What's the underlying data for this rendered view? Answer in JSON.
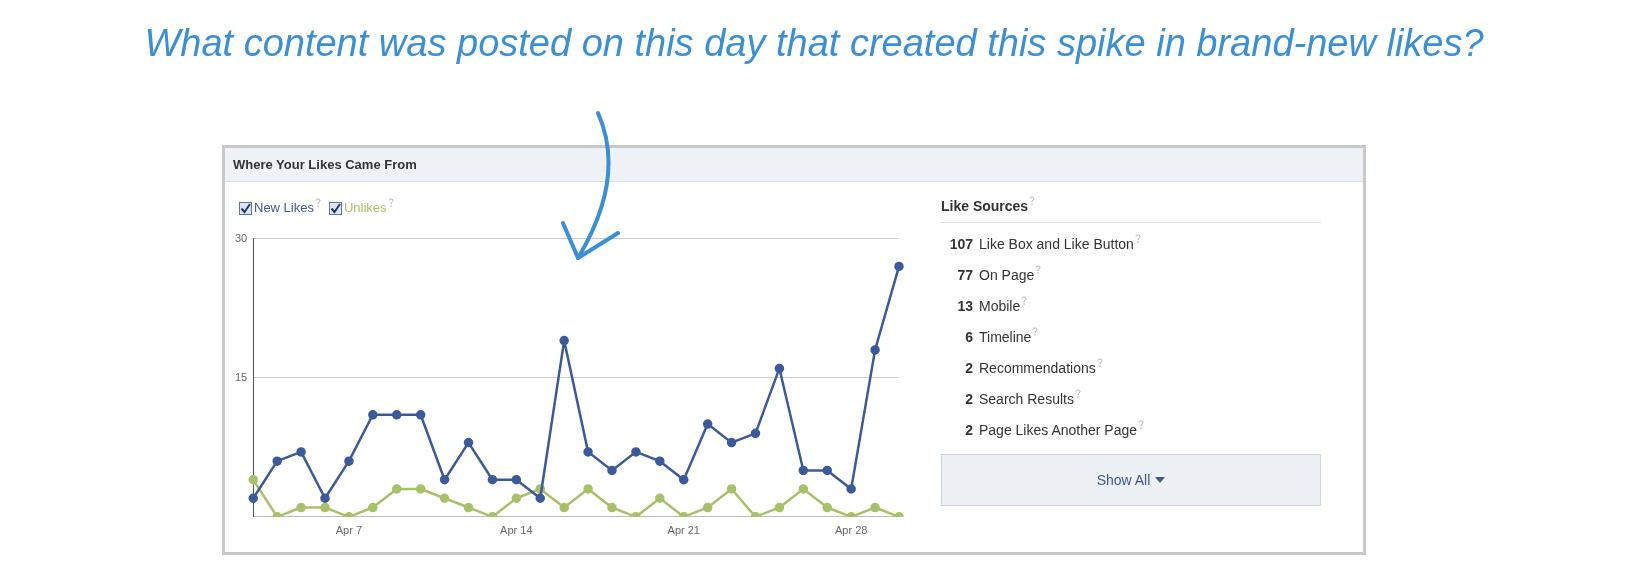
{
  "chart_data": [
    {
      "type": "line",
      "title": "Where Your Likes Came From",
      "annotations": [
        "What content was posted on this day that created this spike in brand-new likes?"
      ],
      "categories": [
        null,
        null,
        null,
        null,
        "Apr 7",
        null,
        null,
        null,
        null,
        null,
        null,
        "Apr 14",
        null,
        null,
        null,
        null,
        null,
        null,
        "Apr 21",
        null,
        null,
        null,
        null,
        null,
        null,
        "Apr 28",
        null,
        null
      ],
      "series": [
        {
          "name": "New Likes",
          "color": "#3d5a98",
          "values": [
            2,
            6,
            7,
            2,
            6,
            11,
            11,
            11,
            4,
            8,
            4,
            4,
            2,
            19,
            7,
            5,
            7,
            6,
            4,
            10,
            8,
            9,
            16,
            5,
            5,
            3,
            18,
            27
          ]
        },
        {
          "name": "Unlikes",
          "color": "#a9c06a",
          "values": [
            4,
            0,
            1,
            1,
            0,
            1,
            3,
            3,
            2,
            1,
            0,
            2,
            3,
            1,
            3,
            1,
            0,
            2,
            0,
            1,
            3,
            0,
            1,
            3,
            1,
            0,
            1,
            0
          ]
        }
      ],
      "ylim": [
        0,
        30
      ],
      "yticks": [
        {
          "value": 0,
          "label": null
        },
        15,
        30
      ],
      "grid": "y",
      "legend": "top left",
      "marker": "circle",
      "line_style": "solid"
    },
    {
      "type": "other",
      "title": "Like Sources",
      "categories": [
        "Like Box and Like Button",
        "On Page",
        "Mobile",
        "Timeline",
        "Recommendations",
        "Search Results",
        "Page Likes Another Page"
      ],
      "values": [
        107,
        77,
        13,
        6,
        2,
        2,
        2
      ],
      "data_labels": true,
      "annotations": [
        "Show All"
      ]
    }
  ]
}
